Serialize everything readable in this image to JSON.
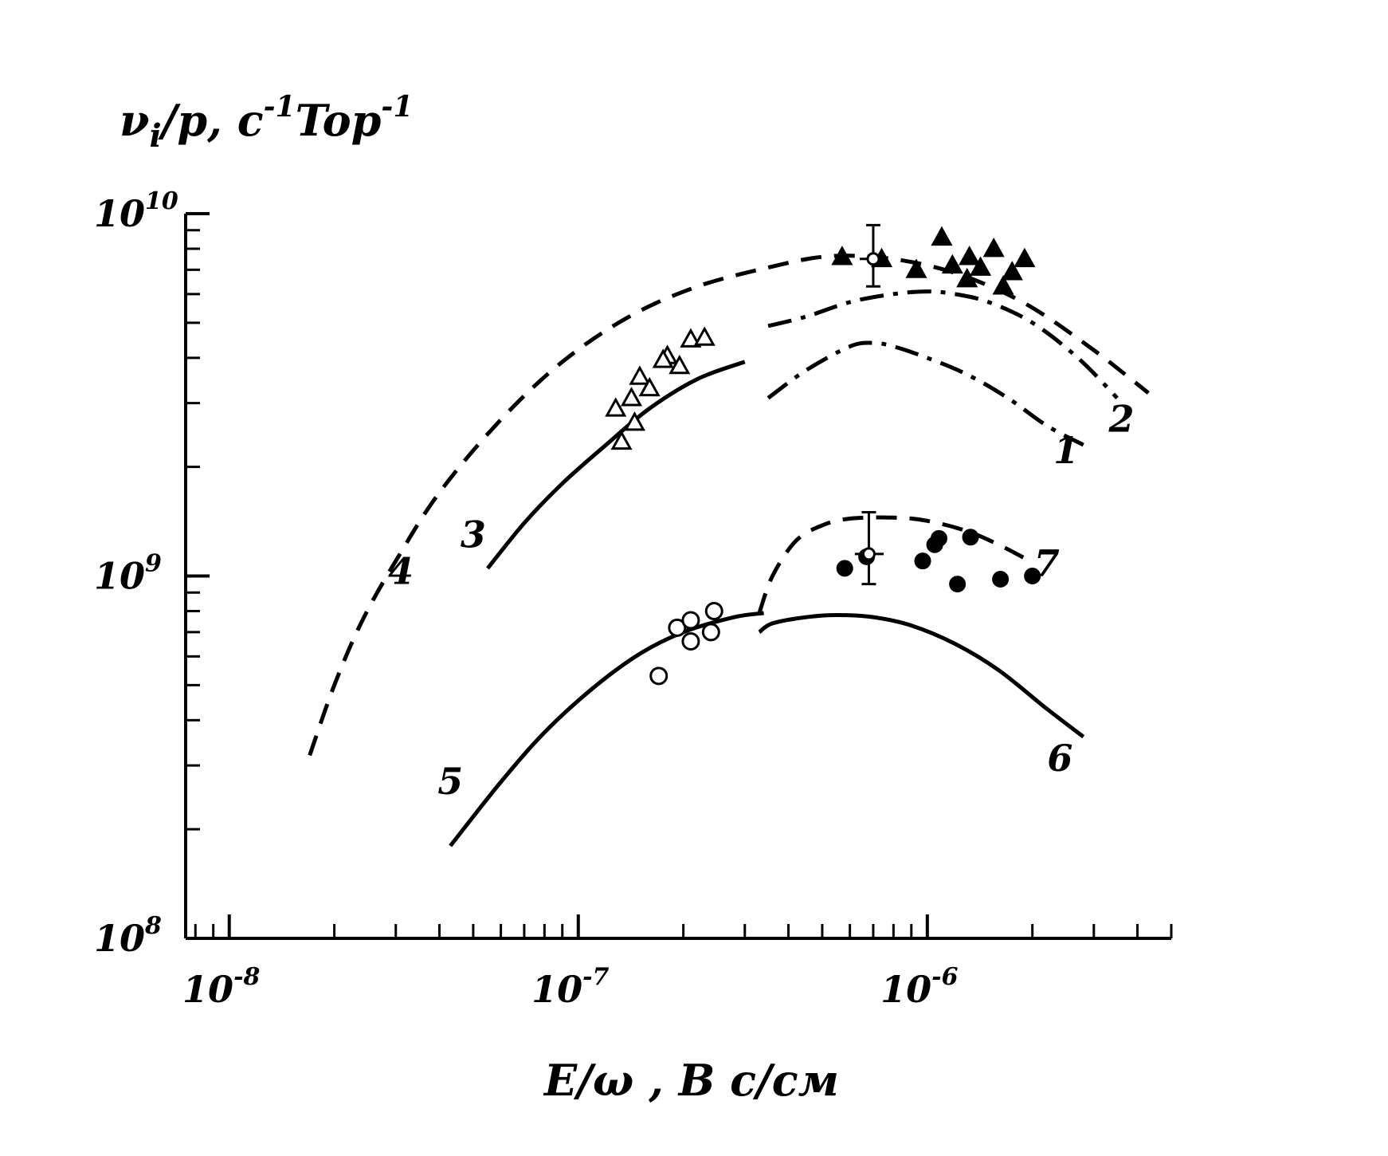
{
  "chart_data": {
    "type": "scatter",
    "title": "",
    "ylabel": "νi/p, c⁻¹Top⁻¹",
    "ylabel_parts": {
      "main": "ν",
      "sub": "i",
      "rest": "/p,  c",
      "sup1": "-1",
      "mid": "Top",
      "sup2": "-1"
    },
    "xlabel": "E/ω , B c/cм",
    "x_scale": "log",
    "y_scale": "log",
    "xlim": [
      7.5e-09,
      5e-06
    ],
    "ylim": [
      100000000.0,
      10000000000.0
    ],
    "x_ticks": [
      {
        "value": 1e-08,
        "base": "10",
        "exp": "-8"
      },
      {
        "value": 1e-07,
        "base": "10",
        "exp": "-7"
      },
      {
        "value": 1e-06,
        "base": "10",
        "exp": "-6"
      }
    ],
    "y_ticks": [
      {
        "value": 100000000.0,
        "base": "10",
        "exp": "8"
      },
      {
        "value": 1000000000.0,
        "base": "10",
        "exp": "9"
      },
      {
        "value": 10000000000.0,
        "base": "10",
        "exp": "10"
      }
    ],
    "grid": false,
    "curves": [
      {
        "name": "1",
        "style": "dashdot",
        "x": [
          3.5e-07,
          4.5e-07,
          6e-07,
          7e-07,
          8e-07,
          1e-06,
          1.3e-06,
          1.7e-06,
          2.2e-06,
          2.8e-06
        ],
        "y": [
          3100000000.0,
          3700000000.0,
          4300000000.0,
          4400000000.0,
          4300000000.0,
          4000000000.0,
          3600000000.0,
          3100000000.0,
          2600000000.0,
          2300000000.0
        ]
      },
      {
        "name": "2",
        "style": "dashdot",
        "x": [
          3.5e-07,
          4.5e-07,
          6e-07,
          8e-07,
          1e-06,
          1.2e-06,
          1.5e-06,
          2e-06,
          2.7e-06,
          3.5e-06
        ],
        "y": [
          4900000000.0,
          5200000000.0,
          5700000000.0,
          6000000000.0,
          6100000000.0,
          6000000000.0,
          5700000000.0,
          5000000000.0,
          4000000000.0,
          3100000000.0
        ]
      },
      {
        "name": "3",
        "style": "solid",
        "x": [
          5.5e-08,
          7e-08,
          9e-08,
          1.2e-07,
          1.6e-07,
          2.2e-07,
          3e-07
        ],
        "y": [
          1050000000.0,
          1400000000.0,
          1800000000.0,
          2300000000.0,
          2900000000.0,
          3500000000.0,
          3900000000.0
        ]
      },
      {
        "name": "4",
        "style": "dashed",
        "x": [
          1.7e-08,
          2e-08,
          2.4e-08,
          3e-08,
          4e-08,
          6e-08,
          9e-08,
          1.4e-07,
          2.2e-07,
          3.5e-07,
          5e-07,
          7e-07,
          1e-06,
          1.4e-06,
          2e-06,
          3e-06,
          4.3e-06
        ],
        "y": [
          320000000.0,
          500000000.0,
          750000000.0,
          1100000000.0,
          1700000000.0,
          2700000000.0,
          3900000000.0,
          5200000000.0,
          6300000000.0,
          7100000000.0,
          7600000000.0,
          7600000000.0,
          7200000000.0,
          6500000000.0,
          5500000000.0,
          4200000000.0,
          3200000000.0
        ]
      },
      {
        "name": "5",
        "style": "solid",
        "x": [
          4.3e-08,
          6e-08,
          8e-08,
          1.1e-07,
          1.5e-07,
          2e-07,
          2.8e-07,
          3.4e-07
        ],
        "y": [
          180000000.0,
          270000000.0,
          370000000.0,
          490000000.0,
          610000000.0,
          700000000.0,
          770000000.0,
          790000000.0
        ]
      },
      {
        "name": "6",
        "style": "solid",
        "x": [
          3.3e-07,
          3.6e-07,
          4.5e-07,
          5.5e-07,
          7e-07,
          9e-07,
          1.2e-06,
          1.6e-06,
          2.2e-06,
          2.8e-06
        ],
        "y": [
          700000000.0,
          740000000.0,
          770000000.0,
          780000000.0,
          770000000.0,
          730000000.0,
          650000000.0,
          550000000.0,
          430000000.0,
          360000000.0
        ]
      },
      {
        "name": "7",
        "style": "dashed",
        "x": [
          3.3e-07,
          3.6e-07,
          4.2e-07,
          5e-07,
          6e-07,
          8e-07,
          1e-06,
          1.3e-06,
          1.6e-06,
          1.9e-06
        ],
        "y": [
          790000000.0,
          1000000000.0,
          1250000000.0,
          1380000000.0,
          1440000000.0,
          1450000000.0,
          1420000000.0,
          1330000000.0,
          1220000000.0,
          1120000000.0
        ]
      }
    ],
    "curve_labels": [
      {
        "text": "1",
        "x": 2.5e-06,
        "y": 2050000000.0
      },
      {
        "text": "2",
        "x": 3.6e-06,
        "y": 2500000000.0
      },
      {
        "text": "3",
        "x": 5e-08,
        "y": 1200000000.0
      },
      {
        "text": "4",
        "x": 3.1e-08,
        "y": 950000000.0
      },
      {
        "text": "5",
        "x": 4.3e-08,
        "y": 250000000.0
      },
      {
        "text": "6",
        "x": 2.4e-06,
        "y": 290000000.0
      },
      {
        "text": "7",
        "x": 2.2e-06,
        "y": 1000000000.0
      }
    ],
    "series": [
      {
        "marker": "open-triangle",
        "points": [
          [
            1.28e-07,
            2900000000.0
          ],
          [
            1.42e-07,
            3100000000.0
          ],
          [
            1.33e-07,
            2350000000.0
          ],
          [
            1.5e-07,
            3550000000.0
          ],
          [
            1.6e-07,
            3300000000.0
          ],
          [
            1.45e-07,
            2650000000.0
          ],
          [
            1.8e-07,
            4050000000.0
          ],
          [
            1.95e-07,
            3800000000.0
          ],
          [
            2.1e-07,
            4500000000.0
          ],
          [
            2.3e-07,
            4550000000.0
          ],
          [
            1.75e-07,
            3950000000.0
          ]
        ]
      },
      {
        "marker": "filled-triangle",
        "points": [
          [
            5.7e-07,
            7600000000.0
          ],
          [
            7.4e-07,
            7500000000.0
          ],
          [
            9.3e-07,
            7000000000.0
          ],
          [
            1.1e-06,
            8600000000.0
          ],
          [
            1.18e-06,
            7200000000.0
          ],
          [
            1.32e-06,
            7600000000.0
          ],
          [
            1.42e-06,
            7100000000.0
          ],
          [
            1.55e-06,
            8000000000.0
          ],
          [
            1.75e-06,
            6900000000.0
          ],
          [
            1.9e-06,
            7500000000.0
          ],
          [
            1.3e-06,
            6600000000.0
          ],
          [
            1.65e-06,
            6300000000.0
          ]
        ]
      },
      {
        "marker": "open-circle",
        "points": [
          [
            1.7e-07,
            530000000.0
          ],
          [
            1.92e-07,
            720000000.0
          ],
          [
            2.1e-07,
            755000000.0
          ],
          [
            2.1e-07,
            660000000.0
          ],
          [
            2.4e-07,
            700000000.0
          ],
          [
            2.45e-07,
            800000000.0
          ]
        ]
      },
      {
        "marker": "filled-circle",
        "points": [
          [
            5.8e-07,
            1050000000.0
          ],
          [
            6.7e-07,
            1130000000.0
          ],
          [
            9.7e-07,
            1100000000.0
          ],
          [
            1.05e-06,
            1220000000.0
          ],
          [
            1.08e-06,
            1270000000.0
          ],
          [
            1.22e-06,
            950000000.0
          ],
          [
            1.33e-06,
            1280000000.0
          ],
          [
            1.62e-06,
            980000000.0
          ],
          [
            2e-06,
            1000000000.0
          ]
        ]
      }
    ],
    "error_bars": [
      {
        "x": 7e-07,
        "y": 7500000000.0,
        "ylo": 6300000000.0,
        "yhi": 9300000000.0,
        "xlo": 6.4e-07,
        "xhi": 7.7e-07
      },
      {
        "x": 6.8e-07,
        "y": 1150000000.0,
        "ylo": 950000000.0,
        "yhi": 1500000000.0,
        "xlo": 6.2e-07,
        "xhi": 7.5e-07
      }
    ]
  }
}
